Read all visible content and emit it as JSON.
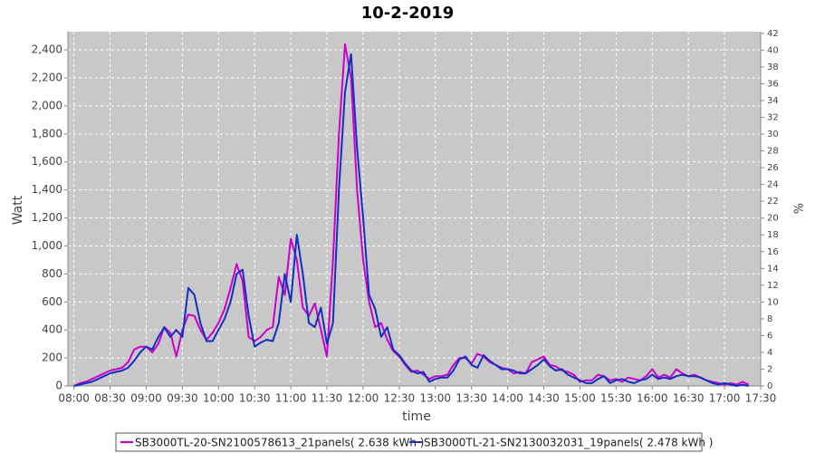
{
  "chart_data": {
    "type": "line",
    "title": "10-2-2019",
    "x_label": "time",
    "y_label": "Watt",
    "y2_label": "%",
    "x": [
      "08:00",
      "08:05",
      "08:10",
      "08:15",
      "08:20",
      "08:25",
      "08:30",
      "08:35",
      "08:40",
      "08:45",
      "08:50",
      "08:55",
      "09:00",
      "09:05",
      "09:10",
      "09:15",
      "09:20",
      "09:25",
      "09:30",
      "09:35",
      "09:40",
      "09:45",
      "09:50",
      "09:55",
      "10:00",
      "10:05",
      "10:10",
      "10:15",
      "10:20",
      "10:25",
      "10:30",
      "10:35",
      "10:40",
      "10:45",
      "10:50",
      "10:55",
      "11:00",
      "11:05",
      "11:10",
      "11:15",
      "11:20",
      "11:25",
      "11:30",
      "11:35",
      "11:40",
      "11:45",
      "11:50",
      "11:55",
      "12:00",
      "12:05",
      "12:10",
      "12:15",
      "12:20",
      "12:25",
      "12:30",
      "12:35",
      "12:40",
      "12:45",
      "12:50",
      "12:55",
      "13:00",
      "13:05",
      "13:10",
      "13:15",
      "13:20",
      "13:25",
      "13:30",
      "13:35",
      "13:40",
      "13:45",
      "13:50",
      "13:55",
      "14:00",
      "14:05",
      "14:10",
      "14:15",
      "14:20",
      "14:25",
      "14:30",
      "14:35",
      "14:40",
      "14:45",
      "14:50",
      "14:55",
      "15:00",
      "15:05",
      "15:10",
      "15:15",
      "15:20",
      "15:25",
      "15:30",
      "15:35",
      "15:40",
      "15:45",
      "15:50",
      "15:55",
      "16:00",
      "16:05",
      "16:10",
      "16:15",
      "16:20",
      "16:25",
      "16:30",
      "16:35",
      "16:40",
      "16:45",
      "16:50",
      "16:55",
      "17:00",
      "17:05",
      "17:10",
      "17:15",
      "17:20"
    ],
    "series": [
      {
        "name": "SB3000TL-20-SN2100578613_21panels( 2.638 kWh )",
        "color": "#cc00cc",
        "values": [
          0,
          20,
          30,
          50,
          70,
          90,
          110,
          120,
          130,
          170,
          260,
          280,
          280,
          240,
          300,
          420,
          380,
          210,
          400,
          510,
          500,
          400,
          330,
          380,
          450,
          550,
          700,
          870,
          750,
          350,
          320,
          350,
          400,
          420,
          780,
          650,
          1050,
          900,
          560,
          500,
          590,
          400,
          210,
          900,
          1800,
          2440,
          2200,
          1400,
          900,
          600,
          420,
          450,
          330,
          250,
          210,
          150,
          100,
          110,
          80,
          50,
          70,
          70,
          80,
          150,
          200,
          200,
          160,
          230,
          210,
          170,
          150,
          130,
          120,
          90,
          100,
          90,
          170,
          190,
          210,
          150,
          140,
          110,
          100,
          80,
          30,
          40,
          40,
          80,
          70,
          40,
          50,
          30,
          60,
          50,
          40,
          70,
          120,
          60,
          80,
          60,
          120,
          90,
          70,
          80,
          60,
          40,
          30,
          20,
          10,
          20,
          10,
          30,
          10
        ]
      },
      {
        "name": "SB3000TL-21-SN2130032031_19panels( 2.478 kWh )",
        "color": "#1030c0",
        "values": [
          0,
          10,
          20,
          30,
          50,
          70,
          90,
          100,
          110,
          130,
          180,
          240,
          280,
          260,
          350,
          420,
          350,
          400,
          350,
          700,
          650,
          450,
          320,
          320,
          400,
          480,
          600,
          800,
          830,
          500,
          280,
          310,
          330,
          320,
          450,
          800,
          600,
          1080,
          800,
          450,
          420,
          560,
          300,
          450,
          1400,
          2100,
          2370,
          1700,
          1200,
          650,
          550,
          350,
          420,
          260,
          220,
          160,
          110,
          90,
          100,
          30,
          50,
          60,
          60,
          110,
          190,
          210,
          150,
          130,
          220,
          180,
          150,
          120,
          120,
          110,
          90,
          90,
          120,
          150,
          190,
          140,
          110,
          120,
          80,
          60,
          40,
          20,
          20,
          50,
          70,
          20,
          40,
          50,
          30,
          20,
          40,
          50,
          80,
          50,
          60,
          50,
          70,
          80,
          70,
          70,
          60,
          40,
          20,
          10,
          20,
          10,
          0,
          10,
          0
        ]
      }
    ],
    "xlim": [
      "07:55",
      "17:30"
    ],
    "xticks": [
      "08:00",
      "08:30",
      "09:00",
      "09:30",
      "10:00",
      "10:30",
      "11:00",
      "11:30",
      "12:00",
      "12:30",
      "13:00",
      "13:30",
      "14:00",
      "14:30",
      "15:00",
      "15:30",
      "16:00",
      "16:30",
      "17:00",
      "17:30"
    ],
    "ylim": [
      0,
      2530
    ],
    "yticks": [
      0,
      200,
      400,
      600,
      800,
      {
        "value": 1000,
        "label": "1,000"
      },
      {
        "value": 1200,
        "label": "1,200"
      },
      {
        "value": 1400,
        "label": "1,400"
      },
      {
        "value": 1600,
        "label": "1,600"
      },
      {
        "value": 1800,
        "label": "1,800"
      },
      {
        "value": 2000,
        "label": "2,000"
      },
      {
        "value": 2200,
        "label": "2,200"
      },
      {
        "value": 2400,
        "label": "2,400"
      }
    ],
    "y2lim": [
      0,
      42.2
    ],
    "y2ticks": [
      0,
      2,
      4,
      6,
      8,
      10,
      12,
      14,
      16,
      18,
      20,
      22,
      24,
      26,
      28,
      30,
      32,
      34,
      36,
      38,
      40,
      42
    ],
    "grid": true
  }
}
